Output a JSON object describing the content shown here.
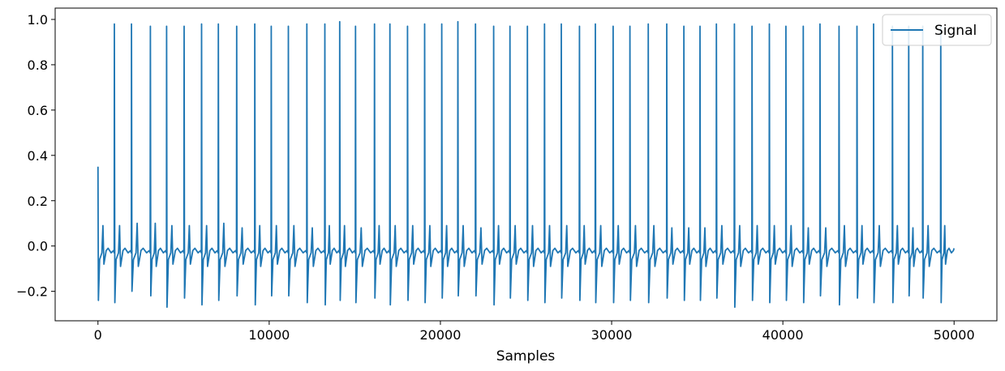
{
  "chart_data": {
    "type": "line",
    "xlabel": "Samples",
    "ylabel": "",
    "xlim": [
      -2500,
      52500
    ],
    "ylim": [
      -0.33,
      1.05
    ],
    "grid": false,
    "legend_position": "top-right",
    "x_ticks": [
      0,
      10000,
      20000,
      30000,
      40000,
      50000
    ],
    "x_tick_labels": [
      "0",
      "10000",
      "20000",
      "30000",
      "40000",
      "50000"
    ],
    "y_ticks": [
      -0.2,
      0.0,
      0.2,
      0.4,
      0.6,
      0.8,
      1.0
    ],
    "y_tick_labels": [
      "−0.2",
      "0.0",
      "0.2",
      "0.4",
      "0.6",
      "0.8",
      "1.0"
    ],
    "series": [
      {
        "name": "Signal",
        "color": "#1f77b4",
        "start_value": 0.35,
        "end_value": -0.01,
        "baseline": -0.01,
        "beat_times": [
          0,
          960,
          1960,
          3060,
          4010,
          5030,
          6050,
          7030,
          8100,
          9160,
          10120,
          11120,
          12200,
          13250,
          14120,
          15040,
          16150,
          17050,
          18080,
          19080,
          20080,
          21020,
          22050,
          23110,
          24060,
          25080,
          26080,
          27060,
          28120,
          29050,
          30090,
          31070,
          32140,
          33220,
          34220,
          35160,
          36120,
          37170,
          38200,
          39210,
          40180,
          41190,
          42170,
          43280,
          44330,
          45300,
          46400,
          47350,
          48170,
          49220
        ],
        "peak_values": [
          0.97,
          0.98,
          0.98,
          0.97,
          0.97,
          0.97,
          0.98,
          0.98,
          0.97,
          0.98,
          0.97,
          0.97,
          0.98,
          0.98,
          0.99,
          0.97,
          0.98,
          0.98,
          0.97,
          0.98,
          0.98,
          0.99,
          0.98,
          0.97,
          0.97,
          0.97,
          0.98,
          0.98,
          0.97,
          0.98,
          0.97,
          0.97,
          0.98,
          0.98,
          0.97,
          0.97,
          0.98,
          0.98,
          0.97,
          0.98,
          0.97,
          0.97,
          0.98,
          0.97,
          0.97,
          0.98,
          0.97,
          0.97,
          0.97,
          0.97
        ],
        "trough_values": [
          -0.24,
          -0.25,
          -0.2,
          -0.22,
          -0.27,
          -0.23,
          -0.26,
          -0.24,
          -0.22,
          -0.26,
          -0.22,
          -0.22,
          -0.25,
          -0.26,
          -0.24,
          -0.25,
          -0.23,
          -0.26,
          -0.24,
          -0.25,
          -0.23,
          -0.22,
          -0.22,
          -0.26,
          -0.23,
          -0.24,
          -0.25,
          -0.23,
          -0.24,
          -0.25,
          -0.25,
          -0.24,
          -0.25,
          -0.23,
          -0.24,
          -0.24,
          -0.23,
          -0.27,
          -0.24,
          -0.25,
          -0.24,
          -0.25,
          -0.22,
          -0.26,
          -0.23,
          -0.25,
          -0.25,
          -0.22,
          -0.23,
          -0.25
        ],
        "t_wave_values": [
          0.09,
          0.09,
          0.1,
          0.1,
          0.09,
          0.09,
          0.09,
          0.1,
          0.08,
          0.09,
          0.09,
          0.09,
          0.08,
          0.09,
          0.09,
          0.08,
          0.09,
          0.09,
          0.09,
          0.09,
          0.09,
          0.09,
          0.08,
          0.09,
          0.09,
          0.09,
          0.09,
          0.09,
          0.09,
          0.09,
          0.09,
          0.09,
          0.09,
          0.08,
          0.08,
          0.08,
          0.09,
          0.09,
          0.09,
          0.09,
          0.09,
          0.08,
          0.08,
          0.09,
          0.09,
          0.09,
          0.09,
          0.08,
          0.09,
          0.09
        ],
        "s_dip_values": [
          -0.08,
          -0.09,
          -0.09,
          -0.09,
          -0.08,
          -0.08,
          -0.09,
          -0.09,
          -0.08,
          -0.09,
          -0.08,
          -0.09,
          -0.09,
          -0.08,
          -0.09,
          -0.09,
          -0.08,
          -0.09,
          -0.08,
          -0.09,
          -0.09,
          -0.09,
          -0.08,
          -0.08,
          -0.08,
          -0.09,
          -0.09,
          -0.09,
          -0.08,
          -0.09,
          -0.08,
          -0.09,
          -0.09,
          -0.08,
          -0.08,
          -0.09,
          -0.08,
          -0.09,
          -0.08,
          -0.08,
          -0.09,
          -0.08,
          -0.09,
          -0.09,
          -0.08,
          -0.09,
          -0.08,
          -0.09,
          -0.09,
          -0.08
        ]
      }
    ]
  },
  "legend": {
    "label": "Signal"
  }
}
